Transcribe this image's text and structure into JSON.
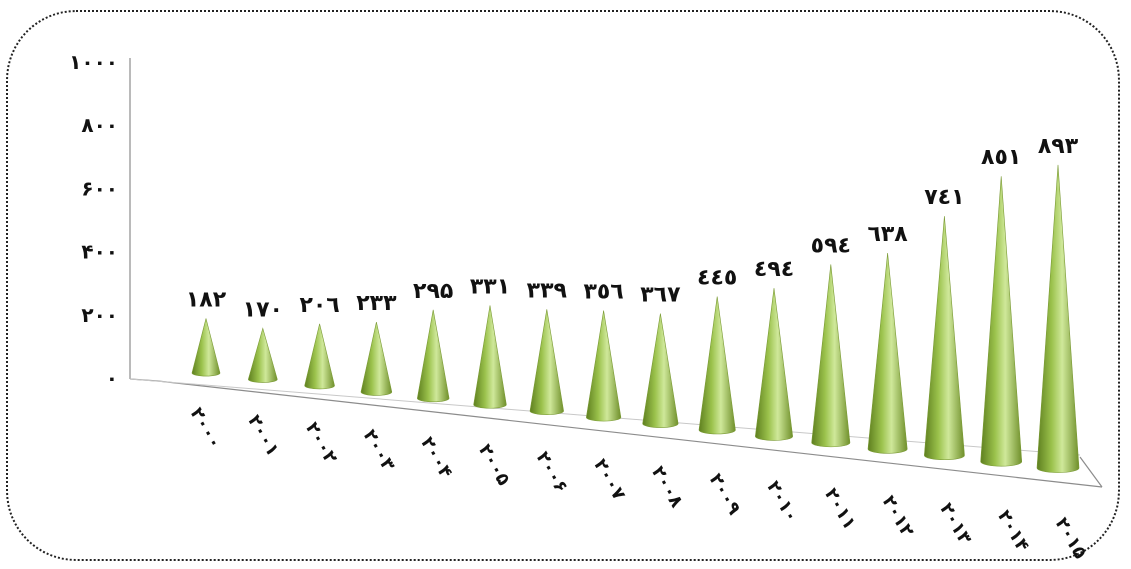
{
  "chart_data": {
    "type": "bar",
    "bar_shape": "cone",
    "categories": [
      "۲۰۰۰",
      "۲۰۰۱",
      "۲۰۰۲",
      "۲۰۰۳",
      "۲۰۰۴",
      "۲۰۰۵",
      "۲۰۰۶",
      "۲۰۰۷",
      "۲۰۰۸",
      "۲۰۰۹",
      "۲۰۱۰",
      "۲۰۱۱",
      "۲۰۱۲",
      "۲۰۱۳",
      "۲۰۱۴",
      "۲۰۱۵"
    ],
    "values": [
      182,
      170,
      206,
      233,
      295,
      331,
      339,
      356,
      367,
      445,
      494,
      594,
      638,
      741,
      851,
      893
    ],
    "value_labels": [
      "۱۸۲",
      "۱۷۰",
      "۲۰٦",
      "۲۳۳",
      "۲۹۵",
      "۳۳۱",
      "۳۳۹",
      "۳٥٦",
      "۳٦٧",
      "٤٤٥",
      "٤۹٤",
      "٥۹٤",
      "٦۳۸",
      "۷٤۱",
      "۸٥۱",
      "۸۹۳"
    ],
    "y_ticks": [
      0,
      200,
      400,
      600,
      800,
      1000
    ],
    "y_tick_labels": [
      "۰",
      "۲۰۰",
      "۴۰۰",
      "۶۰۰",
      "۸۰۰",
      "۱۰۰۰"
    ],
    "ylim": [
      0,
      1000
    ],
    "title": "",
    "xlabel": "",
    "ylabel": "",
    "legend": "none",
    "grid": false,
    "colors": {
      "cone_light": "#cfe89a",
      "cone_mid": "#9bc24c",
      "cone_dark": "#5e7f1f",
      "axis": "#8c8c8c"
    }
  }
}
